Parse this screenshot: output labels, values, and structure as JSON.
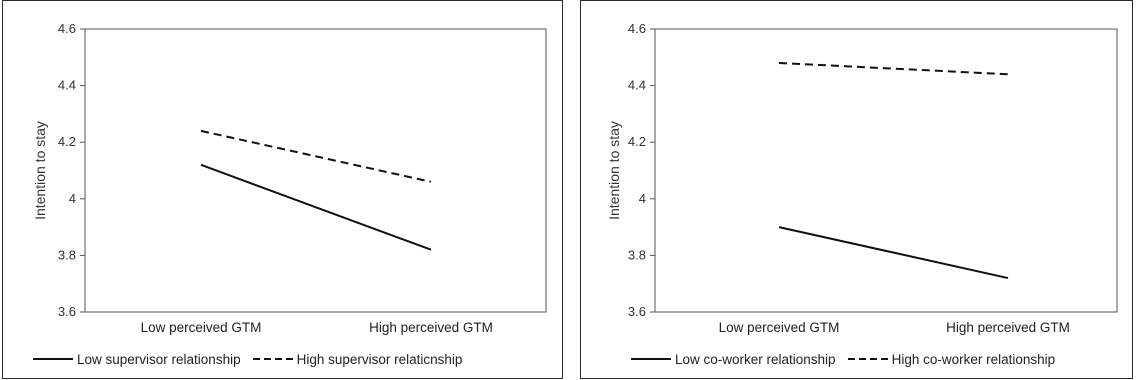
{
  "chart_data": [
    {
      "type": "line",
      "ylabel": "Intention to stay",
      "ylim": [
        3.6,
        4.6
      ],
      "yticks": [
        "3.6",
        "3.8",
        "4",
        "4.2",
        "4.4",
        "4.6"
      ],
      "categories": [
        "Low perceived GTM",
        "High perceived GTM"
      ],
      "series": [
        {
          "name": "Low supervisor relationship",
          "values": [
            4.12,
            3.82
          ],
          "style": "solid",
          "color": "#111111"
        },
        {
          "name": "High supervisor relaticnship",
          "values": [
            4.24,
            4.06
          ],
          "style": "dashed",
          "color": "#111111"
        }
      ],
      "grid": false,
      "legend": "bottom"
    },
    {
      "type": "line",
      "ylabel": "Intention to stay",
      "ylim": [
        3.6,
        4.6
      ],
      "yticks": [
        "3.6",
        "3.8",
        "4",
        "4.2",
        "4.4",
        "4.6"
      ],
      "categories": [
        "Low perceived GTM",
        "High perceived GTM"
      ],
      "series": [
        {
          "name": "Low co-worker relationship",
          "values": [
            3.9,
            3.72
          ],
          "style": "solid",
          "color": "#111111"
        },
        {
          "name": "High co-worker relationship",
          "values": [
            4.48,
            4.44
          ],
          "style": "dashed",
          "color": "#111111"
        }
      ],
      "grid": false,
      "legend": "bottom"
    }
  ]
}
